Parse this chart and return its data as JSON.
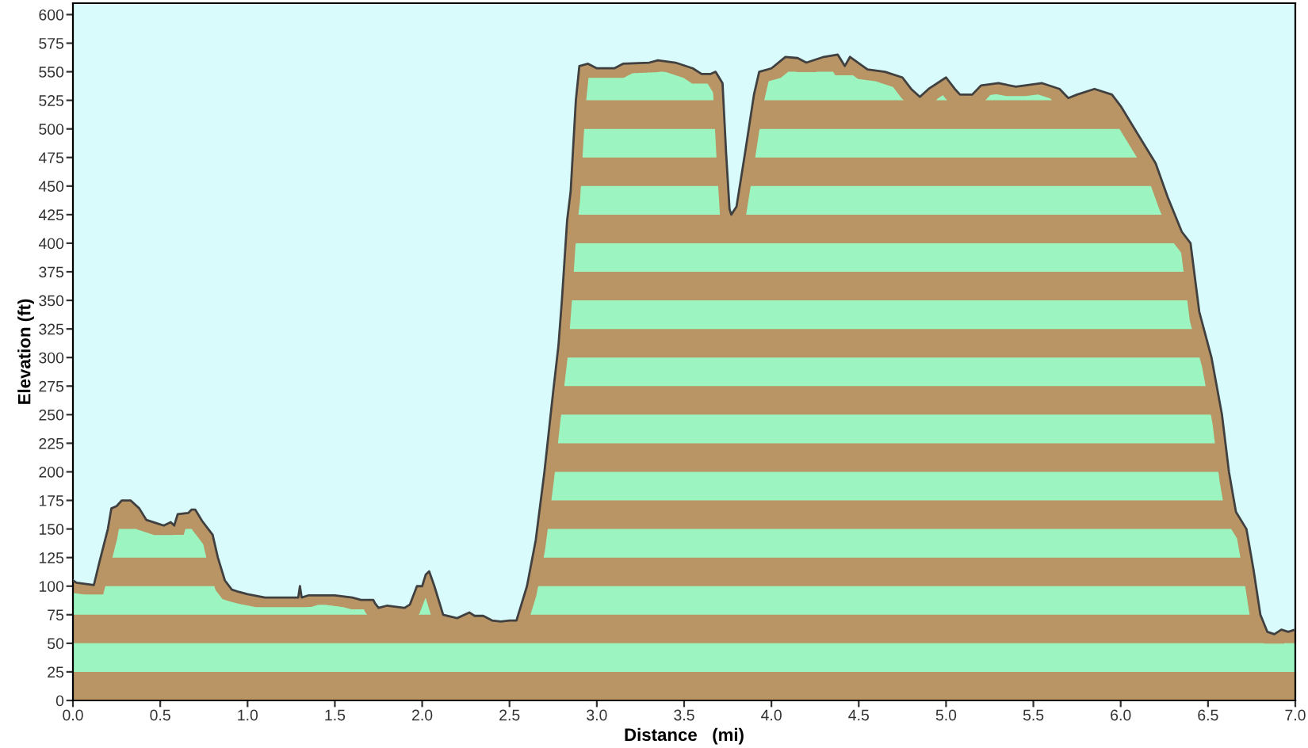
{
  "chart_data": {
    "type": "area",
    "xlabel": "Distance   (mi)",
    "ylabel": "Elevation (ft)",
    "xlim": [
      0,
      7
    ],
    "ylim": [
      0,
      610
    ],
    "xticks": [
      {
        "value": 0,
        "label": "0.0"
      },
      {
        "value": 0.5,
        "label": "0.5"
      },
      {
        "value": 1,
        "label": "1.0"
      },
      {
        "value": 1.5,
        "label": "1.5"
      },
      {
        "value": 2,
        "label": "2.0"
      },
      {
        "value": 2.5,
        "label": "2.5"
      },
      {
        "value": 3,
        "label": "3.0"
      },
      {
        "value": 3.5,
        "label": "3.5"
      },
      {
        "value": 4,
        "label": "4.0"
      },
      {
        "value": 4.5,
        "label": "4.5"
      },
      {
        "value": 5,
        "label": "5.0"
      },
      {
        "value": 5.5,
        "label": "5.5"
      },
      {
        "value": 6,
        "label": "6.0"
      },
      {
        "value": 6.5,
        "label": "6.5"
      },
      {
        "value": 7,
        "label": "7.0"
      }
    ],
    "yticks": [
      0,
      25,
      50,
      75,
      100,
      125,
      150,
      175,
      200,
      225,
      250,
      275,
      300,
      325,
      350,
      375,
      400,
      425,
      450,
      475,
      500,
      525,
      550,
      575,
      600
    ],
    "grid": false,
    "legend": false,
    "series": [
      {
        "color": "#b99565",
        "x": [
          0.0,
          0.02,
          0.12,
          0.15,
          0.2,
          0.22,
          0.25,
          0.28,
          0.33,
          0.38,
          0.42,
          0.48,
          0.52,
          0.56,
          0.58,
          0.6,
          0.66,
          0.68,
          0.7,
          0.74,
          0.8,
          0.83,
          0.87,
          0.91,
          0.95,
          1.0,
          1.1,
          1.2,
          1.29,
          1.3,
          1.31,
          1.35,
          1.5,
          1.6,
          1.65,
          1.72,
          1.73,
          1.75,
          1.8,
          1.9,
          1.93,
          1.97,
          2.0,
          2.02,
          2.04,
          2.07,
          2.12,
          2.2,
          2.27,
          2.3,
          2.35,
          2.4,
          2.45,
          2.5,
          2.54,
          2.56,
          2.6,
          2.65,
          2.7,
          2.75,
          2.78,
          2.8,
          2.83,
          2.85,
          2.88,
          2.9,
          2.95,
          3.0,
          3.1,
          3.15,
          3.3,
          3.35,
          3.45,
          3.55,
          3.6,
          3.65,
          3.68,
          3.72,
          3.74,
          3.76,
          3.77,
          3.8,
          3.85,
          3.9,
          3.93,
          4.0,
          4.08,
          4.15,
          4.2,
          4.3,
          4.38,
          4.42,
          4.45,
          4.55,
          4.65,
          4.75,
          4.8,
          4.85,
          4.9,
          5.0,
          5.05,
          5.08,
          5.15,
          5.2,
          5.3,
          5.4,
          5.55,
          5.65,
          5.7,
          5.75,
          5.85,
          5.95,
          6.0,
          6.1,
          6.2,
          6.27,
          6.35,
          6.4,
          6.45,
          6.52,
          6.58,
          6.62,
          6.66,
          6.72,
          6.76,
          6.8,
          6.84,
          6.88,
          6.92,
          6.96,
          7.0
        ],
        "values": [
          105,
          103,
          101,
          120,
          150,
          168,
          170,
          175,
          175,
          168,
          158,
          155,
          153,
          156,
          153,
          163,
          164,
          167,
          167,
          157,
          145,
          125,
          105,
          97,
          95,
          93,
          90,
          90,
          90,
          100,
          90,
          92,
          92,
          90,
          88,
          88,
          85,
          81,
          83,
          81,
          84,
          100,
          100,
          110,
          113,
          100,
          75,
          72,
          77,
          74,
          74,
          70,
          69,
          70,
          70,
          80,
          100,
          140,
          200,
          270,
          310,
          350,
          420,
          445,
          525,
          555,
          557,
          553,
          553,
          557,
          558,
          560,
          558,
          553,
          548,
          548,
          550,
          540,
          480,
          430,
          425,
          432,
          480,
          530,
          550,
          553,
          563,
          562,
          558,
          563,
          565,
          555,
          563,
          552,
          550,
          545,
          535,
          528,
          535,
          545,
          535,
          530,
          530,
          538,
          540,
          537,
          540,
          535,
          527,
          530,
          535,
          530,
          520,
          495,
          470,
          440,
          410,
          400,
          340,
          300,
          250,
          200,
          165,
          150,
          115,
          75,
          60,
          58,
          62,
          60,
          62
        ]
      }
    ]
  }
}
